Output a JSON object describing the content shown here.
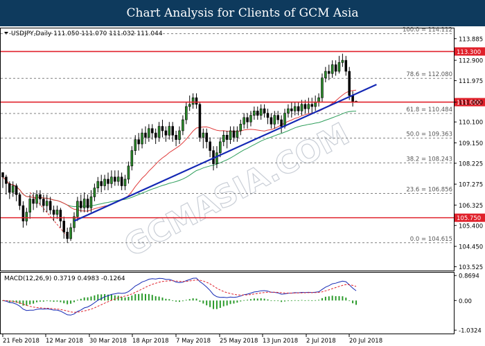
{
  "banner": {
    "title": "Chart Analysis for Clients of GCM Asia"
  },
  "chart_data": {
    "type": "candlestick",
    "symbol_header": "USDJPY,Daily  111.050 111.070 111.032 111.044",
    "watermark": "GCMASIA.COM",
    "y_ticks": [
      "113.885",
      "112.900",
      "111.975",
      "111.000",
      "110.100",
      "109.150",
      "108.225",
      "107.275",
      "106.325",
      "105.400",
      "104.450",
      "103.525"
    ],
    "x_ticks": [
      "21 Feb 2018",
      "12 Mar 2018",
      "30 Mar 2018",
      "18 Apr 2018",
      "7 May 2018",
      "25 May 2018",
      "13 Jun 2018",
      "2 Jul 2018",
      "20 Jul 2018"
    ],
    "ylim": [
      103.35,
      114.35
    ],
    "fib_levels": [
      {
        "label": "100.0 = 114.112",
        "value": 114.112
      },
      {
        "label": "78.6 = 112.080",
        "value": 112.08
      },
      {
        "label": "61.8 = 110.484",
        "value": 110.484
      },
      {
        "label": "50.0 = 109.363",
        "value": 109.363
      },
      {
        "label": "38.2 = 108.243",
        "value": 108.243
      },
      {
        "label": "23.6 = 106.856",
        "value": 106.856
      },
      {
        "label": "0.0 = 104.615",
        "value": 104.615
      }
    ],
    "key_levels": [
      {
        "label": "113.300",
        "value": 113.3
      },
      {
        "label": "111.000",
        "value": 111.0
      },
      {
        "label": "105.750",
        "value": 105.75
      }
    ],
    "trendline": {
      "from": {
        "bar": 21,
        "value": 105.6
      },
      "to": {
        "bar": 110,
        "value": 111.8
      }
    },
    "candles": [
      [
        107.8,
        107.6,
        107.8,
        107.1
      ],
      [
        107.6,
        107.3,
        107.7,
        106.8
      ],
      [
        107.3,
        106.9,
        107.4,
        106.6
      ],
      [
        106.9,
        107.2,
        107.4,
        106.7
      ],
      [
        107.2,
        106.8,
        107.3,
        106.5
      ],
      [
        106.8,
        106.3,
        106.9,
        106.1
      ],
      [
        106.3,
        105.6,
        106.5,
        105.3
      ],
      [
        105.6,
        106.0,
        106.2,
        105.4
      ],
      [
        106.0,
        106.6,
        106.8,
        105.7
      ],
      [
        106.6,
        106.4,
        106.9,
        106.1
      ],
      [
        106.4,
        106.8,
        107.0,
        106.2
      ],
      [
        106.8,
        106.6,
        107.0,
        106.3
      ],
      [
        106.6,
        106.3,
        106.8,
        106.0
      ],
      [
        106.3,
        106.5,
        106.8,
        106.0
      ],
      [
        106.5,
        106.1,
        106.7,
        105.9
      ],
      [
        106.1,
        105.9,
        106.3,
        105.6
      ],
      [
        105.9,
        106.1,
        106.3,
        105.7
      ],
      [
        106.1,
        105.6,
        106.2,
        105.3
      ],
      [
        105.6,
        105.1,
        105.8,
        104.8
      ],
      [
        105.1,
        104.8,
        105.3,
        104.6
      ],
      [
        104.8,
        105.3,
        105.5,
        104.7
      ],
      [
        105.3,
        105.8,
        106.0,
        105.1
      ],
      [
        105.8,
        106.5,
        106.7,
        105.6
      ],
      [
        106.5,
        106.2,
        106.8,
        106.0
      ],
      [
        106.2,
        106.6,
        106.9,
        106.0
      ],
      [
        106.6,
        106.2,
        106.8,
        106.0
      ],
      [
        106.2,
        106.7,
        107.0,
        106.0
      ],
      [
        106.7,
        107.1,
        107.3,
        106.5
      ],
      [
        107.1,
        107.4,
        107.6,
        106.9
      ],
      [
        107.4,
        107.2,
        107.7,
        106.9
      ],
      [
        107.2,
        107.5,
        107.7,
        107.0
      ],
      [
        107.5,
        107.3,
        107.8,
        107.0
      ],
      [
        107.3,
        107.6,
        107.9,
        107.1
      ],
      [
        107.6,
        107.4,
        107.9,
        107.2
      ],
      [
        107.4,
        107.6,
        107.9,
        107.2
      ],
      [
        107.6,
        107.2,
        107.8,
        107.0
      ],
      [
        107.2,
        107.5,
        107.7,
        107.0
      ],
      [
        107.5,
        108.1,
        108.3,
        107.3
      ],
      [
        108.1,
        108.8,
        109.0,
        107.9
      ],
      [
        108.8,
        109.3,
        109.5,
        108.6
      ],
      [
        109.3,
        109.1,
        109.6,
        108.8
      ],
      [
        109.1,
        109.6,
        109.8,
        108.9
      ],
      [
        109.6,
        109.4,
        109.9,
        109.1
      ],
      [
        109.4,
        109.8,
        110.0,
        109.2
      ],
      [
        109.8,
        109.6,
        110.0,
        109.3
      ],
      [
        109.6,
        109.4,
        109.8,
        109.1
      ],
      [
        109.4,
        109.9,
        110.1,
        109.2
      ],
      [
        109.9,
        109.7,
        110.2,
        109.4
      ],
      [
        109.7,
        109.5,
        109.9,
        109.2
      ],
      [
        109.5,
        109.9,
        110.1,
        109.3
      ],
      [
        109.9,
        109.5,
        110.1,
        109.2
      ],
      [
        109.5,
        109.3,
        109.7,
        109.0
      ],
      [
        109.3,
        109.7,
        109.9,
        109.1
      ],
      [
        109.7,
        110.2,
        110.4,
        109.5
      ],
      [
        110.2,
        110.8,
        111.0,
        110.0
      ],
      [
        110.8,
        110.9,
        111.3,
        110.6
      ],
      [
        110.9,
        111.2,
        111.4,
        110.7
      ],
      [
        111.2,
        110.9,
        111.4,
        110.7
      ],
      [
        110.9,
        109.4,
        111.0,
        109.2
      ],
      [
        109.4,
        109.6,
        109.8,
        108.9
      ],
      [
        109.6,
        109.2,
        109.8,
        108.9
      ],
      [
        109.2,
        108.8,
        109.4,
        108.5
      ],
      [
        108.8,
        108.2,
        109.0,
        107.9
      ],
      [
        108.2,
        108.7,
        109.0,
        108.0
      ],
      [
        108.7,
        109.2,
        109.4,
        108.5
      ],
      [
        109.2,
        109.5,
        109.7,
        109.0
      ],
      [
        109.5,
        109.3,
        109.7,
        108.9
      ],
      [
        109.3,
        109.7,
        109.9,
        109.1
      ],
      [
        109.7,
        109.4,
        109.9,
        109.2
      ],
      [
        109.4,
        109.7,
        109.9,
        109.2
      ],
      [
        109.7,
        110.0,
        110.2,
        109.5
      ],
      [
        110.0,
        110.3,
        110.5,
        109.8
      ],
      [
        110.3,
        110.1,
        110.5,
        109.8
      ],
      [
        110.1,
        110.4,
        110.6,
        109.9
      ],
      [
        110.4,
        110.6,
        110.8,
        110.2
      ],
      [
        110.6,
        110.4,
        110.8,
        110.2
      ],
      [
        110.4,
        110.7,
        110.9,
        110.2
      ],
      [
        110.7,
        110.5,
        110.9,
        110.3
      ],
      [
        110.5,
        110.3,
        110.7,
        110.0
      ],
      [
        110.3,
        110.0,
        110.5,
        109.8
      ],
      [
        110.0,
        110.4,
        110.6,
        109.8
      ],
      [
        110.4,
        110.2,
        110.6,
        110.0
      ],
      [
        110.2,
        109.9,
        110.4,
        109.6
      ],
      [
        109.9,
        110.5,
        110.7,
        109.8
      ],
      [
        110.5,
        110.7,
        110.9,
        110.3
      ],
      [
        110.7,
        110.6,
        111.0,
        110.3
      ],
      [
        110.6,
        110.8,
        111.0,
        110.4
      ],
      [
        110.8,
        110.6,
        111.0,
        110.4
      ],
      [
        110.6,
        110.9,
        111.1,
        110.4
      ],
      [
        110.9,
        110.7,
        111.1,
        110.5
      ],
      [
        110.7,
        110.9,
        111.2,
        110.5
      ],
      [
        110.9,
        110.8,
        111.2,
        110.5
      ],
      [
        110.8,
        111.0,
        111.3,
        110.6
      ],
      [
        111.0,
        111.2,
        111.4,
        110.8
      ],
      [
        111.2,
        112.1,
        112.3,
        111.0
      ],
      [
        112.1,
        112.4,
        112.6,
        111.9
      ],
      [
        112.4,
        112.3,
        112.7,
        112.0
      ],
      [
        112.3,
        112.7,
        112.9,
        112.1
      ],
      [
        112.7,
        112.4,
        112.9,
        112.2
      ],
      [
        112.4,
        112.8,
        113.1,
        112.3
      ],
      [
        112.8,
        112.9,
        113.2,
        112.6
      ],
      [
        112.9,
        112.4,
        113.1,
        112.2
      ],
      [
        112.4,
        111.3,
        112.6,
        111.1
      ],
      [
        111.3,
        111.0,
        111.5,
        110.8
      ],
      [
        111.0,
        111.04,
        111.07,
        111.03
      ]
    ],
    "indicator": {
      "name": "MACD",
      "header": "MACD(12,26,9) 0.3719 0.4983 -0.1264",
      "y_ticks": [
        "0.8694",
        "0.00",
        "-1.0324"
      ],
      "ylim": [
        -1.15,
        0.97
      ]
    }
  }
}
